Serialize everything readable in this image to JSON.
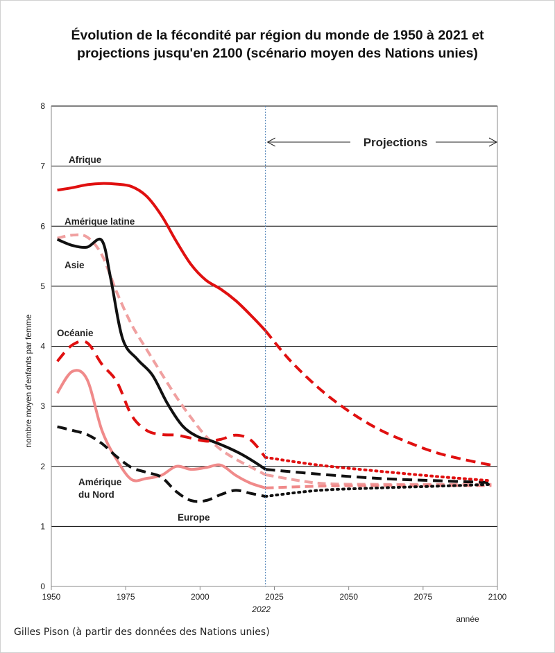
{
  "chart_data": {
    "type": "line",
    "title": "Évolution de la fécondité par région du monde de 1950 à 2021 et projections jusqu'en 2100 (scénario moyen des Nations unies)",
    "xlabel": "année",
    "ylabel": "nombre moyen d'enfants par femme",
    "xlim": [
      1950,
      2100
    ],
    "ylim": [
      0,
      8
    ],
    "x_ticks": [
      "1950",
      "1975",
      "2000",
      "2025",
      "2050",
      "2075",
      "2100"
    ],
    "y_ticks": [
      "0",
      "1",
      "2",
      "3",
      "4",
      "5",
      "6",
      "7",
      "8"
    ],
    "grid": "horizontal",
    "marker_year": "2022",
    "projection_label": "Projections",
    "series": [
      {
        "name": "Afrique",
        "color": "#e01010",
        "observed": [
          [
            1952,
            6.6
          ],
          [
            1957,
            6.64
          ],
          [
            1962,
            6.69
          ],
          [
            1967,
            6.71
          ],
          [
            1972,
            6.7
          ],
          [
            1977,
            6.66
          ],
          [
            1982,
            6.5
          ],
          [
            1987,
            6.18
          ],
          [
            1992,
            5.75
          ],
          [
            1997,
            5.36
          ],
          [
            2002,
            5.1
          ],
          [
            2007,
            4.95
          ],
          [
            2012,
            4.76
          ],
          [
            2017,
            4.52
          ],
          [
            2022,
            4.26
          ]
        ],
        "projection": [
          [
            2022,
            4.26
          ],
          [
            2030,
            3.78
          ],
          [
            2040,
            3.3
          ],
          [
            2050,
            2.92
          ],
          [
            2060,
            2.62
          ],
          [
            2070,
            2.4
          ],
          [
            2080,
            2.22
          ],
          [
            2090,
            2.1
          ],
          [
            2098,
            2.02
          ]
        ]
      },
      {
        "name": "Amérique latine",
        "color": "#f0a0a0",
        "observed": [
          [
            1952,
            5.8
          ],
          [
            1957,
            5.85
          ],
          [
            1962,
            5.82
          ],
          [
            1967,
            5.52
          ],
          [
            1972,
            4.9
          ],
          [
            1977,
            4.36
          ],
          [
            1982,
            3.95
          ],
          [
            1987,
            3.55
          ],
          [
            1992,
            3.16
          ],
          [
            1997,
            2.81
          ],
          [
            2002,
            2.5
          ],
          [
            2007,
            2.28
          ],
          [
            2012,
            2.12
          ],
          [
            2017,
            1.99
          ],
          [
            2022,
            1.86
          ]
        ],
        "projection": [
          [
            2022,
            1.86
          ],
          [
            2040,
            1.72
          ],
          [
            2060,
            1.7
          ],
          [
            2080,
            1.7
          ],
          [
            2098,
            1.7
          ]
        ]
      },
      {
        "name": "Asie",
        "color": "#111111",
        "observed": [
          [
            1952,
            5.78
          ],
          [
            1957,
            5.68
          ],
          [
            1962,
            5.65
          ],
          [
            1967,
            5.76
          ],
          [
            1970,
            5.12
          ],
          [
            1974,
            4.12
          ],
          [
            1979,
            3.78
          ],
          [
            1984,
            3.52
          ],
          [
            1989,
            3.05
          ],
          [
            1994,
            2.68
          ],
          [
            1999,
            2.5
          ],
          [
            2004,
            2.42
          ],
          [
            2009,
            2.32
          ],
          [
            2014,
            2.2
          ],
          [
            2019,
            2.05
          ],
          [
            2022,
            1.95
          ]
        ],
        "projection": [
          [
            2022,
            1.95
          ],
          [
            2040,
            1.87
          ],
          [
            2060,
            1.8
          ],
          [
            2080,
            1.76
          ],
          [
            2098,
            1.73
          ]
        ]
      },
      {
        "name": "Océanie",
        "color": "#e01010",
        "observed": [
          [
            1952,
            3.75
          ],
          [
            1957,
            4.02
          ],
          [
            1962,
            4.06
          ],
          [
            1967,
            3.7
          ],
          [
            1972,
            3.41
          ],
          [
            1977,
            2.85
          ],
          [
            1982,
            2.6
          ],
          [
            1987,
            2.53
          ],
          [
            1992,
            2.52
          ],
          [
            1997,
            2.47
          ],
          [
            2002,
            2.42
          ],
          [
            2007,
            2.45
          ],
          [
            2012,
            2.52
          ],
          [
            2017,
            2.44
          ],
          [
            2022,
            2.15
          ]
        ],
        "projection": [
          [
            2022,
            2.15
          ],
          [
            2040,
            2.02
          ],
          [
            2060,
            1.92
          ],
          [
            2080,
            1.83
          ],
          [
            2098,
            1.76
          ]
        ]
      },
      {
        "name": "Amérique du Nord",
        "color": "#f08a8a",
        "observed": [
          [
            1952,
            3.22
          ],
          [
            1957,
            3.58
          ],
          [
            1962,
            3.45
          ],
          [
            1967,
            2.6
          ],
          [
            1972,
            2.11
          ],
          [
            1977,
            1.78
          ],
          [
            1982,
            1.8
          ],
          [
            1987,
            1.85
          ],
          [
            1992,
            2.0
          ],
          [
            1997,
            1.95
          ],
          [
            2002,
            1.98
          ],
          [
            2007,
            2.02
          ],
          [
            2012,
            1.85
          ],
          [
            2017,
            1.72
          ],
          [
            2022,
            1.64
          ]
        ],
        "projection": [
          [
            2022,
            1.64
          ],
          [
            2040,
            1.67
          ],
          [
            2060,
            1.68
          ],
          [
            2080,
            1.68
          ],
          [
            2098,
            1.68
          ]
        ]
      },
      {
        "name": "Europe",
        "color": "#111111",
        "observed": [
          [
            1952,
            2.66
          ],
          [
            1957,
            2.6
          ],
          [
            1962,
            2.53
          ],
          [
            1967,
            2.38
          ],
          [
            1972,
            2.16
          ],
          [
            1977,
            1.98
          ],
          [
            1982,
            1.9
          ],
          [
            1987,
            1.82
          ],
          [
            1992,
            1.58
          ],
          [
            1997,
            1.43
          ],
          [
            2002,
            1.43
          ],
          [
            2007,
            1.53
          ],
          [
            2012,
            1.6
          ],
          [
            2017,
            1.55
          ],
          [
            2022,
            1.5
          ]
        ],
        "projection": [
          [
            2022,
            1.5
          ],
          [
            2040,
            1.6
          ],
          [
            2060,
            1.64
          ],
          [
            2080,
            1.67
          ],
          [
            2098,
            1.7
          ]
        ]
      }
    ],
    "labels": [
      {
        "text": "Afrique",
        "color": "#222222"
      },
      {
        "text": "Amérique latine",
        "color": "#222222"
      },
      {
        "text": "Asie",
        "color": "#222222"
      },
      {
        "text": "Océanie",
        "color": "#cc1818"
      },
      {
        "text": "Amérique",
        "color": "#222222"
      },
      {
        "text": "du Nord",
        "color": "#222222"
      },
      {
        "text": "Europe",
        "color": "#222222"
      }
    ]
  },
  "footer": "Gilles Pison (à partir des données des Nations unies)"
}
